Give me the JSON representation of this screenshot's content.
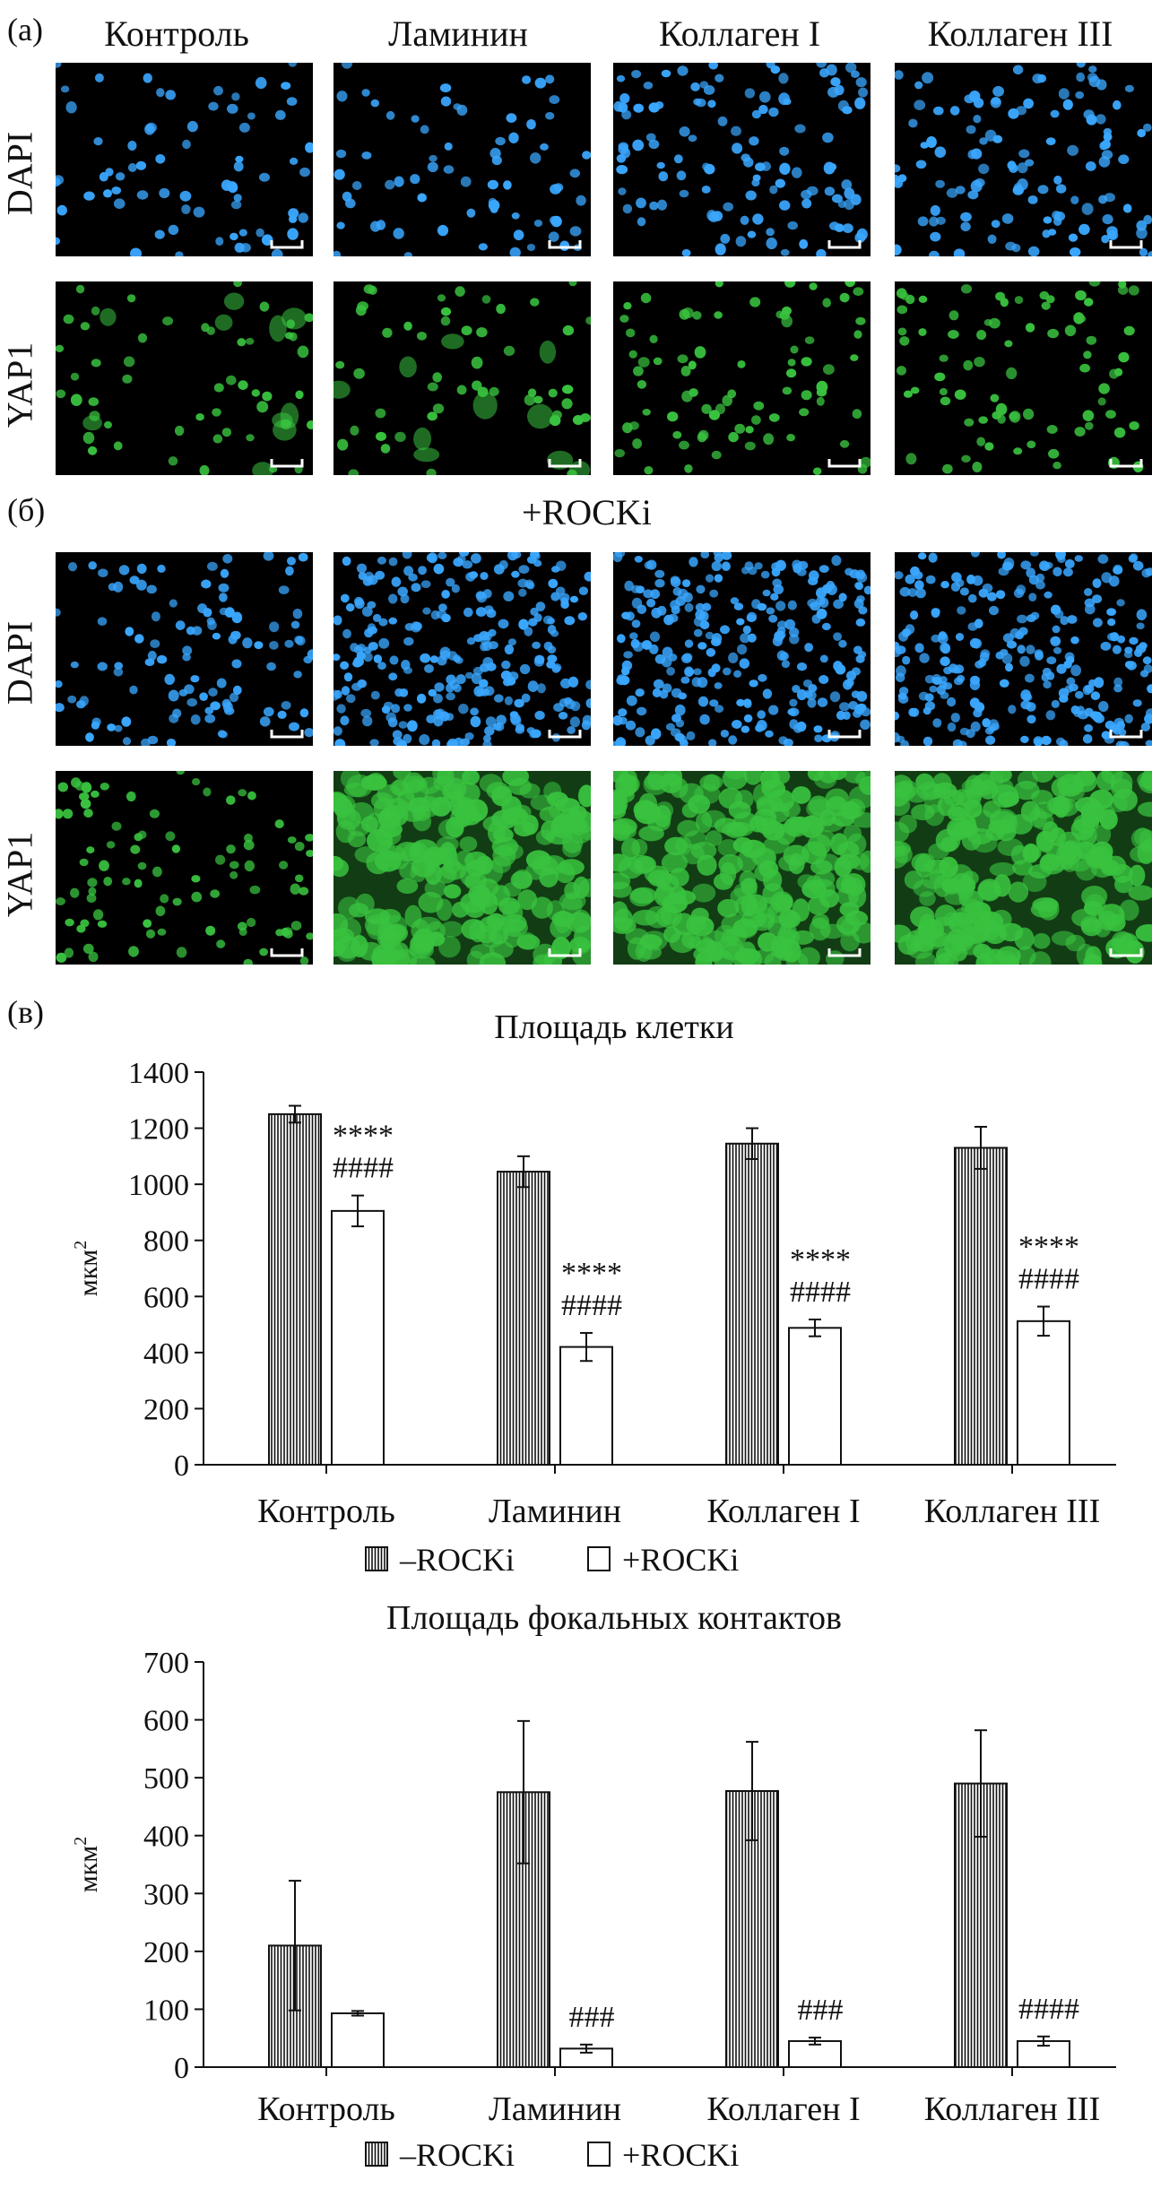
{
  "panel_labels": {
    "a": "(а)",
    "b": "(б)",
    "c": "(в)"
  },
  "column_labels": [
    "Контроль",
    "Ламинин",
    "Коллаген I",
    "Коллаген III"
  ],
  "row_labels": {
    "dapi": "DAPI",
    "yap1": "YAP1"
  },
  "rocki_label": "+ROCKi",
  "image_colors": {
    "dapi": "#3aa7ff",
    "yap1": "#39c23f"
  },
  "chart_data": [
    {
      "type": "bar",
      "title": "Площадь клетки",
      "ylabel": "мкм²",
      "ylabel_text": "мкм",
      "ylabel_sup": "2",
      "ylim": [
        0,
        1400
      ],
      "yticks": [
        0,
        200,
        400,
        600,
        800,
        1000,
        1200,
        1400
      ],
      "categories": [
        "Контроль",
        "Ламинин",
        "Коллаген I",
        "Коллаген III"
      ],
      "series": [
        {
          "name": "–ROCKi",
          "values": [
            1250,
            1045,
            1145,
            1130
          ],
          "errors": [
            30,
            55,
            55,
            75
          ],
          "pattern": "vertical-stripes"
        },
        {
          "name": "+ROCKi",
          "values": [
            905,
            420,
            488,
            512
          ],
          "errors": [
            55,
            50,
            30,
            52
          ],
          "pattern": "white"
        }
      ],
      "annotations": [
        {
          "category": "Контроль",
          "series": "+ROCKi",
          "lines": [
            "****",
            "####"
          ]
        },
        {
          "category": "Ламинин",
          "series": "+ROCKi",
          "lines": [
            "****",
            "####"
          ]
        },
        {
          "category": "Коллаген I",
          "series": "+ROCKi",
          "lines": [
            "****",
            "####"
          ]
        },
        {
          "category": "Коллаген III",
          "series": "+ROCKi",
          "lines": [
            "****",
            "####"
          ]
        }
      ],
      "legend": [
        "–ROCKi",
        "+ROCKi"
      ]
    },
    {
      "type": "bar",
      "title": "Площадь фокальных контактов",
      "ylabel": "мкм²",
      "ylabel_text": "мкм",
      "ylabel_sup": "2",
      "ylim": [
        0,
        700
      ],
      "yticks": [
        0,
        100,
        200,
        300,
        400,
        500,
        600,
        700
      ],
      "categories": [
        "Контроль",
        "Ламинин",
        "Коллаген I",
        "Коллаген III"
      ],
      "series": [
        {
          "name": "–ROCKi",
          "values": [
            210,
            475,
            477,
            490
          ],
          "errors": [
            112,
            123,
            85,
            92
          ],
          "pattern": "vertical-stripes"
        },
        {
          "name": "+ROCKi",
          "values": [
            93,
            32,
            45,
            45
          ],
          "errors": [
            4,
            7,
            6,
            8
          ],
          "pattern": "white"
        }
      ],
      "annotations": [
        {
          "category": "Ламинин",
          "series": "+ROCKi",
          "lines": [
            "###"
          ]
        },
        {
          "category": "Коллаген I",
          "series": "+ROCKi",
          "lines": [
            "###"
          ]
        },
        {
          "category": "Коллаген III",
          "series": "+ROCKi",
          "lines": [
            "####"
          ]
        }
      ],
      "legend": [
        "–ROCKi",
        "+ROCKi"
      ]
    }
  ]
}
